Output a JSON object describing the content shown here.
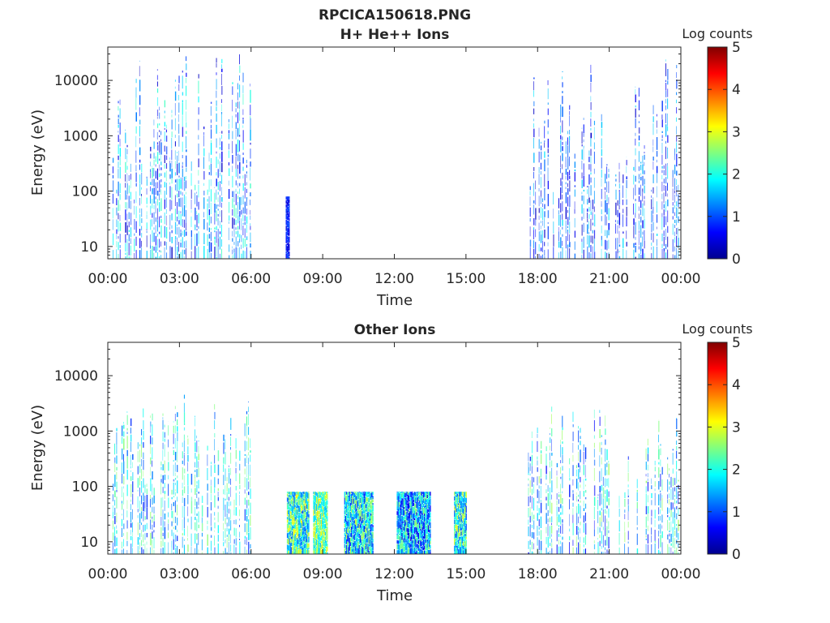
{
  "figure": {
    "title": "RPCICA150618.PNG"
  },
  "colorbar_label": "Log counts",
  "colorbar_ticks": [
    "0",
    "1",
    "2",
    "3",
    "4",
    "5"
  ],
  "colors": {
    "axis": "#262626",
    "low": "#00008f",
    "high": "#800000"
  },
  "chart_data": [
    {
      "type": "heatmap",
      "title": "H+ He++ Ions",
      "xlabel": "Time",
      "ylabel": "Energy (eV)",
      "x_ticks": [
        "00:00",
        "03:00",
        "06:00",
        "09:00",
        "12:00",
        "15:00",
        "18:00",
        "21:00",
        "00:00"
      ],
      "xlim_hours": [
        0,
        24
      ],
      "y_scale": "log",
      "ylim": [
        6,
        40000
      ],
      "y_ticks": [
        10,
        100,
        1000,
        10000
      ],
      "y_tick_labels": [
        "10",
        "100",
        "1000",
        "10000"
      ],
      "clim": [
        0,
        5
      ],
      "colormap": "jet",
      "grid": false,
      "intervals": [
        {
          "start_h": 0.2,
          "end_h": 6.0,
          "e_min": 6,
          "e_max": 30000,
          "level_min": 0.3,
          "level_max": 2.2
        },
        {
          "start_h": 7.45,
          "end_h": 7.6,
          "e_min": 6,
          "e_max": 80,
          "level_min": 0.4,
          "level_max": 1.0
        },
        {
          "start_h": 17.6,
          "end_h": 23.9,
          "e_min": 6,
          "e_max": 30000,
          "level_min": 0.3,
          "level_max": 1.8
        }
      ]
    },
    {
      "type": "heatmap",
      "title": "Other Ions",
      "xlabel": "Time",
      "ylabel": "Energy (eV)",
      "x_ticks": [
        "00:00",
        "03:00",
        "06:00",
        "09:00",
        "12:00",
        "15:00",
        "18:00",
        "21:00",
        "00:00"
      ],
      "xlim_hours": [
        0,
        24
      ],
      "y_scale": "log",
      "ylim": [
        6,
        40000
      ],
      "y_ticks": [
        10,
        100,
        1000,
        10000
      ],
      "y_tick_labels": [
        "10",
        "100",
        "1000",
        "10000"
      ],
      "clim": [
        0,
        5
      ],
      "colormap": "jet",
      "grid": false,
      "intervals": [
        {
          "start_h": 0.2,
          "end_h": 6.0,
          "e_min": 6,
          "e_max": 5000,
          "level_min": 0.8,
          "level_max": 2.6
        },
        {
          "start_h": 7.5,
          "end_h": 8.4,
          "e_min": 6,
          "e_max": 80,
          "level_min": 1.0,
          "level_max": 3.2
        },
        {
          "start_h": 8.6,
          "end_h": 9.2,
          "e_min": 6,
          "e_max": 80,
          "level_min": 1.5,
          "level_max": 3.3
        },
        {
          "start_h": 9.9,
          "end_h": 11.1,
          "e_min": 6,
          "e_max": 80,
          "level_min": 0.7,
          "level_max": 2.8
        },
        {
          "start_h": 12.1,
          "end_h": 13.5,
          "e_min": 6,
          "e_max": 80,
          "level_min": 0.4,
          "level_max": 2.6
        },
        {
          "start_h": 14.5,
          "end_h": 15.0,
          "e_min": 6,
          "e_max": 80,
          "level_min": 0.9,
          "level_max": 3.0
        },
        {
          "start_h": 17.6,
          "end_h": 23.9,
          "e_min": 6,
          "e_max": 3000,
          "level_min": 0.6,
          "level_max": 2.7
        }
      ]
    }
  ]
}
